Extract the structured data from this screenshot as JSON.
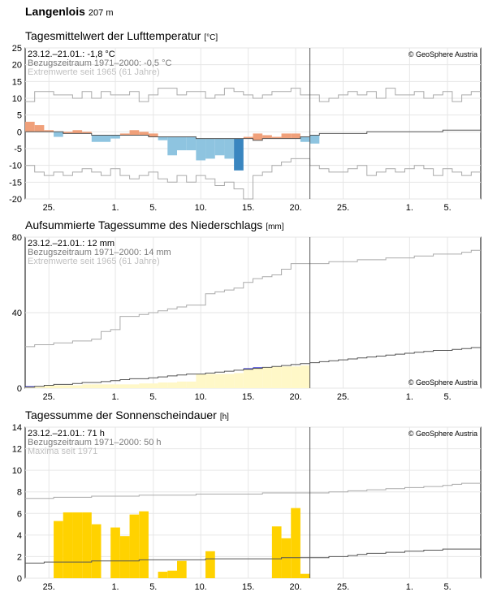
{
  "station": {
    "name": "Langenlois",
    "elevation": "207 m"
  },
  "x_ticks": [
    "25.",
    "1.",
    "5.",
    "10.",
    "15.",
    "20.",
    "25.",
    "1.",
    "5."
  ],
  "x_tick_days": [
    2,
    9,
    13,
    18,
    23,
    28,
    33,
    40,
    44
  ],
  "current_day_index": 30,
  "copyright": "© GeoSphere Austria",
  "chart_data": [
    {
      "type": "bar",
      "title": "Tagesmittelwert der Lufttemperatur",
      "unit": "[°C]",
      "ylim": [
        -20,
        25
      ],
      "yticks": [
        -20,
        -15,
        -10,
        -5,
        0,
        5,
        10,
        15,
        20,
        25
      ],
      "legend": {
        "line1": "23.12.–21.01.: -1,8 °C",
        "line2": "Bezugszeitraum 1971–2000: -0,5 °C",
        "line3": "Extremwerte seit 1965 (61 Jahre)"
      },
      "colors": {
        "warm": "#f0a07a",
        "cold": "#8ec4e0",
        "cold_extreme": "#3a86c0",
        "normal": "#555555",
        "extreme": "#aaaaaa"
      },
      "anomalies": [
        3,
        2,
        0.5,
        -1.5,
        0.5,
        1,
        0.5,
        -2,
        -2,
        -1,
        0.5,
        1.5,
        1,
        1,
        -1,
        -5.5,
        -4,
        -4,
        -6.5,
        -6,
        -5,
        -6,
        -9.5,
        0.5,
        2,
        1,
        0.5,
        1.5,
        1.5,
        -1.5,
        -2.5
      ],
      "normal": [
        0,
        0,
        0,
        0,
        -0.5,
        -0.5,
        -0.5,
        -1,
        -1,
        -1,
        -1,
        -1,
        -1,
        -1.5,
        -1.5,
        -1.5,
        -1.5,
        -1.5,
        -2,
        -2,
        -2,
        -2,
        -2,
        -2,
        -2.5,
        -2,
        -2,
        -2,
        -2,
        -1.5,
        -1,
        -0.5,
        -0.5,
        -0.5,
        -0.5,
        -0.5,
        0,
        0,
        0,
        0,
        0,
        0,
        0,
        0,
        0.5,
        0.5,
        0.5,
        0.5
      ],
      "max_extreme": [
        9,
        12,
        12,
        11,
        11,
        10,
        12,
        10,
        12,
        11,
        11,
        12,
        9,
        11,
        13,
        13,
        11,
        12,
        12,
        10,
        11,
        13,
        12,
        11,
        10,
        11,
        12,
        12,
        13,
        11,
        11,
        9,
        10,
        11,
        12,
        11,
        12,
        10,
        13,
        11,
        11,
        12,
        10,
        11,
        12,
        9,
        11,
        12
      ],
      "min_extreme": [
        -10,
        -12,
        -13,
        -12,
        -13,
        -12,
        -11,
        -12,
        -13,
        -11,
        -13,
        -14,
        -13,
        -12,
        -14,
        -15,
        -13,
        -15,
        -13,
        -14,
        -16,
        -15,
        -17,
        -20,
        -13,
        -12,
        -10,
        -9,
        -8,
        -8,
        -10,
        -11,
        -12,
        -12,
        -11,
        -10,
        -13,
        -12,
        -11,
        -12,
        -11,
        -10,
        -11,
        -13,
        -11,
        -12,
        -13,
        -12
      ]
    },
    {
      "type": "area",
      "title": "Aufsummierte Tagessumme des Niederschlags",
      "unit": "[mm]",
      "ylim": [
        0,
        80
      ],
      "yticks": [
        0,
        40,
        80
      ],
      "legend": {
        "line1": "23.12.–21.01.: 12 mm",
        "line2": "Bezugszeitraum 1971–2000: 14 mm",
        "line3": "Extremwerte seit 1965 (61 Jahre)"
      },
      "colors": {
        "below": "#fff8c8",
        "above": "#0000cc",
        "normal": "#555555",
        "extreme": "#aaaaaa"
      },
      "cumulative": [
        1,
        1,
        1.5,
        1.5,
        1.5,
        1.5,
        2,
        2,
        2,
        2,
        2,
        2,
        2.5,
        2.5,
        3,
        3,
        3.5,
        3.5,
        7.5,
        7.5,
        7.5,
        7.5,
        8,
        10.5,
        11,
        11,
        11.5,
        11.5,
        11.5,
        12
      ],
      "normal": [
        0.5,
        1,
        1.5,
        2,
        2,
        2.5,
        3,
        3,
        3.5,
        4,
        4.5,
        5,
        5,
        5.5,
        6,
        6.5,
        7,
        7.5,
        7.5,
        8,
        8.5,
        9,
        9.5,
        10,
        10.5,
        11,
        11.5,
        12,
        12.5,
        13,
        13.5,
        14,
        14.5,
        15,
        15.5,
        16,
        16.5,
        17,
        17.5,
        18,
        18.5,
        19,
        19.5,
        20,
        20,
        20.5,
        21,
        21.5
      ],
      "max_extreme": [
        22,
        23,
        23,
        24,
        24,
        25,
        25,
        26,
        30,
        31,
        38,
        38,
        39,
        40,
        41,
        42,
        43,
        44,
        44,
        50,
        51,
        52,
        53,
        56,
        58,
        59,
        60,
        63,
        66,
        66,
        66,
        66,
        67,
        67,
        67,
        68,
        68,
        68,
        69,
        69,
        69,
        70,
        70,
        71,
        71,
        71,
        72,
        73
      ]
    },
    {
      "type": "bar",
      "title": "Tagessumme der Sonnenscheindauer",
      "unit": "[h]",
      "ylim": [
        0,
        14
      ],
      "yticks": [
        0,
        2,
        4,
        6,
        8,
        10,
        12,
        14
      ],
      "legend": {
        "line1": "23.12.–21.01.: 71 h",
        "line2": "Bezugszeitraum 1971–2000: 50 h",
        "line3": "Maxima seit 1971"
      },
      "colors": {
        "bar": "#ffd200",
        "normal": "#555555",
        "extreme": "#aaaaaa"
      },
      "values": [
        0,
        0,
        0,
        5.3,
        6.1,
        6.1,
        6.1,
        5.0,
        0,
        4.7,
        3.9,
        5.9,
        6.2,
        0,
        0.6,
        0.7,
        1.6,
        0,
        0,
        2.5,
        0,
        0,
        0,
        0,
        0,
        0,
        4.8,
        3.7,
        6.5,
        0.4
      ],
      "normal": [
        1.4,
        1.4,
        1.5,
        1.5,
        1.5,
        1.5,
        1.5,
        1.6,
        1.6,
        1.6,
        1.6,
        1.6,
        1.7,
        1.7,
        1.7,
        1.7,
        1.7,
        1.7,
        1.7,
        1.8,
        1.8,
        1.8,
        1.8,
        1.8,
        1.8,
        1.8,
        1.8,
        1.9,
        1.9,
        1.9,
        1.9,
        1.9,
        2.0,
        2.0,
        2.1,
        2.2,
        2.3,
        2.3,
        2.4,
        2.4,
        2.5,
        2.5,
        2.6,
        2.6,
        2.7,
        2.7,
        2.7,
        2.7
      ],
      "max_extreme": [
        7.4,
        7.4,
        7.4,
        7.5,
        7.5,
        7.5,
        7.5,
        7.6,
        7.6,
        7.6,
        7.6,
        7.6,
        7.7,
        7.7,
        7.7,
        7.7,
        7.7,
        7.7,
        7.8,
        7.8,
        7.8,
        7.8,
        7.8,
        7.8,
        7.8,
        7.9,
        7.9,
        7.9,
        7.9,
        7.9,
        7.9,
        7.9,
        8.0,
        8.0,
        8.1,
        8.1,
        8.2,
        8.2,
        8.3,
        8.3,
        8.4,
        8.4,
        8.5,
        8.5,
        8.6,
        8.7,
        8.8,
        8.8
      ]
    }
  ]
}
